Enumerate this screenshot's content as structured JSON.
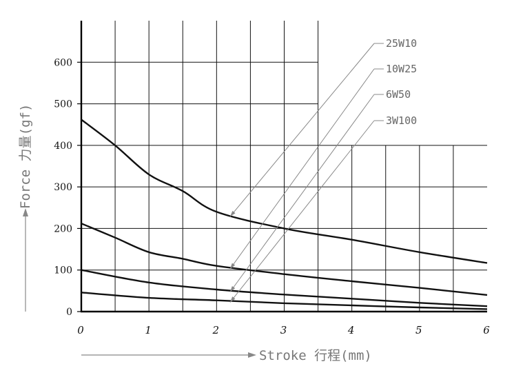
{
  "chart_data": {
    "type": "line",
    "xlabel": "Stroke 行程(mm)",
    "ylabel": "Force 力量(gf)",
    "xlim": [
      0,
      6
    ],
    "ylim": [
      0,
      700
    ],
    "x_ticks": [
      "0",
      "1",
      "2",
      "3",
      "4",
      "5",
      "6"
    ],
    "y_ticks": [
      "0",
      "100",
      "200",
      "300",
      "400",
      "500",
      "600"
    ],
    "grid": true,
    "legend_placement": "callout-labels-top-right",
    "series": [
      {
        "name": "25W10",
        "x": [
          0,
          0.5,
          1,
          1.5,
          2,
          3,
          4,
          5,
          6
        ],
        "values": [
          462,
          400,
          330,
          290,
          240,
          200,
          173,
          143,
          117
        ]
      },
      {
        "name": "10W25",
        "x": [
          0,
          0.5,
          1,
          1.5,
          2,
          3,
          4,
          5,
          6
        ],
        "values": [
          212,
          178,
          143,
          127,
          110,
          90,
          73,
          57,
          40
        ]
      },
      {
        "name": "6W50",
        "x": [
          0,
          1,
          2,
          3,
          4,
          5,
          6
        ],
        "values": [
          100,
          70,
          53,
          41,
          31,
          21,
          13
        ]
      },
      {
        "name": "3W100",
        "x": [
          0,
          1,
          2,
          3,
          4,
          5,
          6
        ],
        "values": [
          46,
          33,
          27,
          20,
          15,
          10,
          6
        ]
      }
    ],
    "colors": {
      "curve": "#111111",
      "grid": "#111111",
      "callout": "#888888",
      "label": "#666666"
    }
  }
}
